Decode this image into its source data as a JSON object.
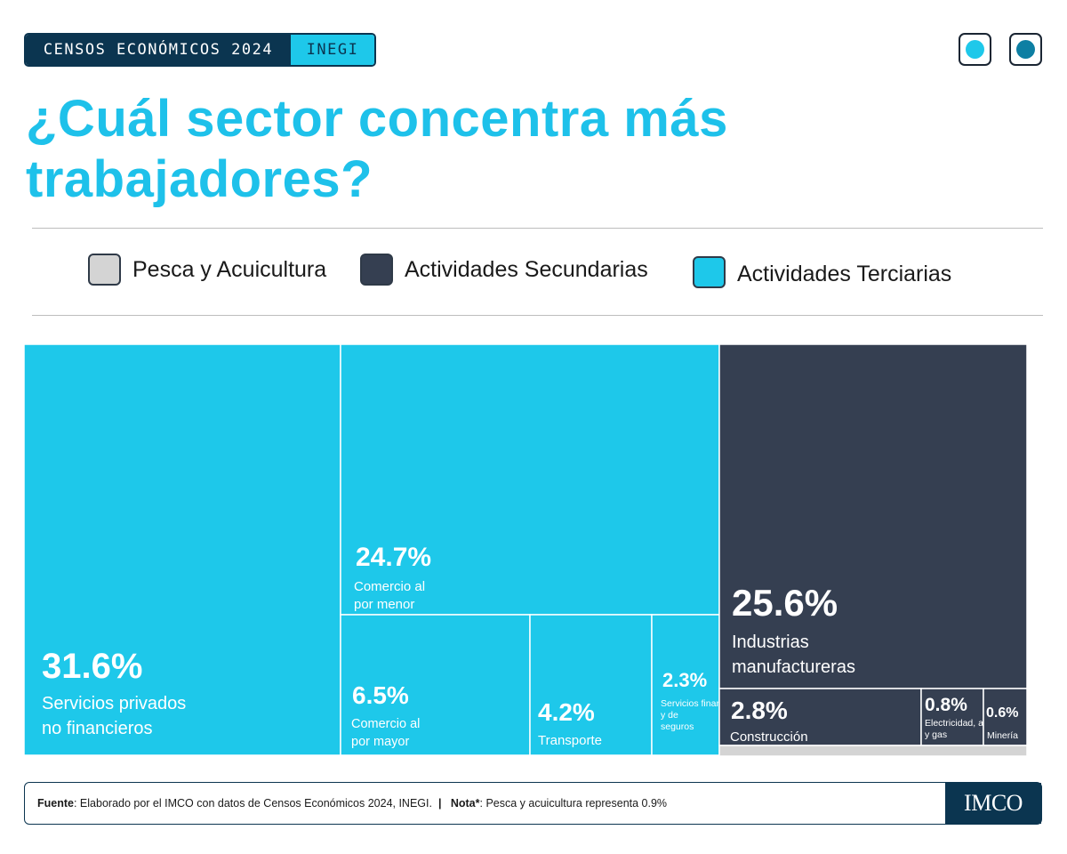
{
  "badge": {
    "left": "CENSOS ECONÓMICOS 2024",
    "right": "INEGI"
  },
  "title_lines": [
    "¿Cuál sector concentra más",
    "trabajadores?"
  ],
  "legend": [
    {
      "label": "Pesca y Acuicultura",
      "color": "#d4d4d4"
    },
    {
      "label": "Actividades Secundarias",
      "color": "#353f51"
    },
    {
      "label": "Actividades Terciarias",
      "color": "#1ec8ea"
    }
  ],
  "controls": {
    "dot1_color": "#1ec8ea",
    "dot2_color": "#0d7fa3"
  },
  "chart_data": {
    "type": "treemap",
    "unit": "%",
    "groups": [
      {
        "name": "Actividades Terciarias",
        "color": "#1ec8ea"
      },
      {
        "name": "Actividades Secundarias",
        "color": "#353f51"
      },
      {
        "name": "Pesca y Acuicultura",
        "color": "#d4d4d4"
      }
    ],
    "items": [
      {
        "label": "Servicios privados no financieros",
        "value": 31.6,
        "group": "Actividades Terciarias"
      },
      {
        "label": "Comercio al por menor",
        "value": 24.7,
        "group": "Actividades Terciarias"
      },
      {
        "label": "Comercio al por mayor",
        "value": 6.5,
        "group": "Actividades Terciarias"
      },
      {
        "label": "Transporte",
        "value": 4.2,
        "group": "Actividades Terciarias"
      },
      {
        "label": "Servicios financieros y de seguros",
        "value": 2.3,
        "group": "Actividades Terciarias"
      },
      {
        "label": "Industrias manufactureras",
        "value": 25.6,
        "group": "Actividades Secundarias"
      },
      {
        "label": "Construcción",
        "value": 2.8,
        "group": "Actividades Secundarias"
      },
      {
        "label": "Electricidad, agua y gas",
        "value": 0.8,
        "group": "Actividades Secundarias"
      },
      {
        "label": "Minería",
        "value": 0.6,
        "group": "Actividades Secundarias"
      },
      {
        "label": "",
        "value": 0.9,
        "group": "Pesca y Acuicultura"
      }
    ]
  },
  "footer": {
    "fuente_label": "Fuente",
    "fuente_text": ": Elaborado por el IMCO con datos de Censos Económicos 2024, INEGI.",
    "separator": "|",
    "nota_label": "Nota*",
    "nota_text": ": Pesca y acuicultura representa 0.9%",
    "logo_text": "IMCO"
  }
}
